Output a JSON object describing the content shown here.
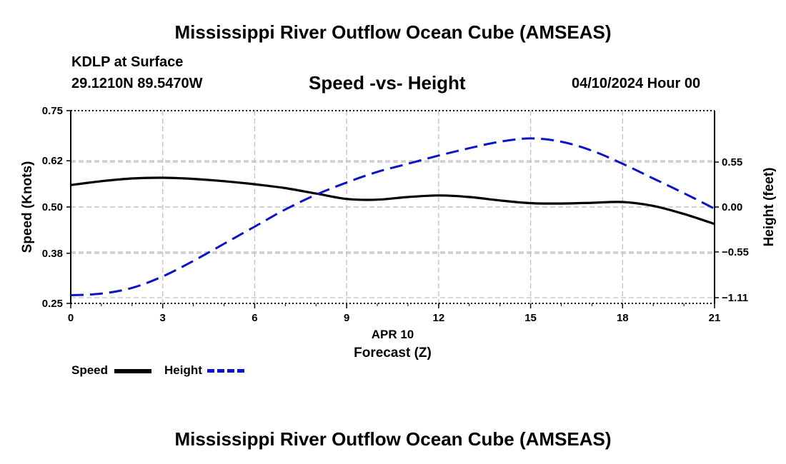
{
  "header": {
    "title": "Mississippi River Outflow Ocean Cube (AMSEAS)",
    "station": "KDLP at Surface",
    "coordinates": "29.1210N  89.5470W",
    "subtitle": "Speed -vs- Height",
    "datetime": "04/10/2024 Hour 00"
  },
  "footer": {
    "title": "Mississippi River Outflow Ocean Cube (AMSEAS)"
  },
  "legend": {
    "speed_label": "Speed",
    "height_label": "Height"
  },
  "colors": {
    "speed": "#000000",
    "height": "#0a14c8",
    "grid": "#c0c0c0"
  },
  "chart_data": {
    "type": "line",
    "title": "Speed -vs- Height",
    "xlabel": "Forecast (Z)",
    "xlabel_date": "APR 10",
    "ylabel_left": "Speed (Knots)",
    "ylabel_right": "Height (feet)",
    "xlim": [
      0,
      21
    ],
    "ylim_left": [
      0.25,
      0.75
    ],
    "ylim_right": [
      -1.18,
      1.18
    ],
    "x_ticks": [
      0,
      3,
      6,
      9,
      12,
      15,
      18,
      21
    ],
    "x_tick_labels": [
      "0",
      "3",
      "6",
      "9",
      "12",
      "15",
      "18",
      "21"
    ],
    "left_ticks": [
      0.25,
      0.38,
      0.5,
      0.62,
      0.75
    ],
    "left_tick_labels": [
      "0.25",
      "0.38",
      "0.50",
      "0.62",
      "0.75"
    ],
    "right_ticks": [
      0.55,
      0.0,
      -0.55,
      -1.11
    ],
    "right_tick_labels": [
      "0.55",
      "0.00",
      "−0.55",
      "−1.11"
    ],
    "grid": true,
    "legend_position": "bottom-left",
    "series": [
      {
        "name": "Speed",
        "axis": "left",
        "style": "solid",
        "x": [
          0,
          1,
          2,
          3,
          4,
          5,
          6,
          7,
          8,
          9,
          10,
          11,
          12,
          13,
          14,
          15,
          16,
          17,
          18,
          19,
          20,
          21
        ],
        "values": [
          0.557,
          0.567,
          0.574,
          0.576,
          0.573,
          0.567,
          0.559,
          0.549,
          0.535,
          0.521,
          0.519,
          0.526,
          0.53,
          0.526,
          0.517,
          0.51,
          0.509,
          0.511,
          0.513,
          0.503,
          0.482,
          0.456
        ]
      },
      {
        "name": "Height",
        "axis": "right",
        "style": "dashed",
        "x": [
          0,
          1,
          2,
          3,
          4,
          5,
          6,
          7,
          8,
          9,
          10,
          11,
          12,
          13,
          14,
          15,
          16,
          17,
          18,
          19,
          20,
          21
        ],
        "values": [
          -1.08,
          -1.06,
          -0.99,
          -0.85,
          -0.66,
          -0.45,
          -0.24,
          -0.03,
          0.15,
          0.3,
          0.43,
          0.53,
          0.63,
          0.72,
          0.8,
          0.84,
          0.8,
          0.69,
          0.53,
          0.35,
          0.17,
          -0.02
        ]
      }
    ]
  }
}
